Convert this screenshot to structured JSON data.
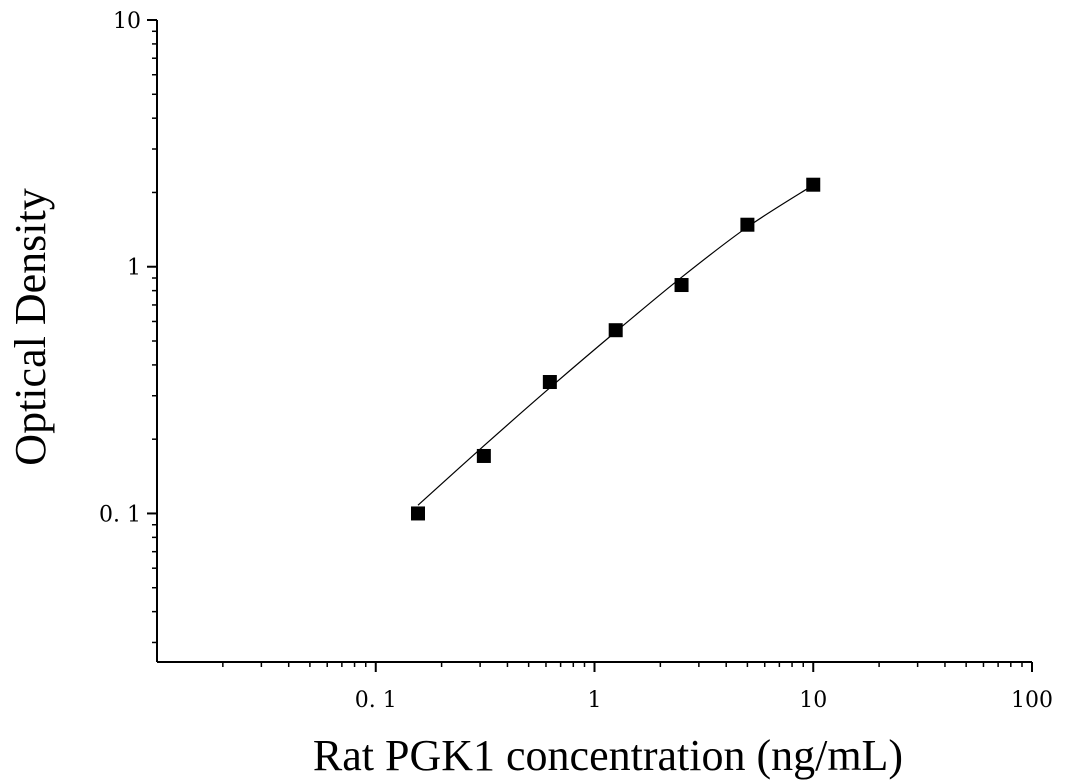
{
  "chart_data": {
    "type": "scatter",
    "title": "",
    "xlabel": "Rat PGK1 concentration (ng/mL)",
    "ylabel": "Optical Density",
    "x_scale": "log",
    "y_scale": "log",
    "xlim": [
      0.01,
      100
    ],
    "ylim": [
      0.025,
      10
    ],
    "x_ticks": [
      {
        "value": 0.1,
        "label": "0. 1"
      },
      {
        "value": 1,
        "label": "1"
      },
      {
        "value": 10,
        "label": "10"
      },
      {
        "value": 100,
        "label": "100"
      }
    ],
    "y_ticks": [
      {
        "value": 0.1,
        "label": "0. 1"
      },
      {
        "value": 1,
        "label": "1"
      },
      {
        "value": 10,
        "label": "10"
      }
    ],
    "grid": false,
    "legend": "none",
    "series": [
      {
        "marker": "square",
        "color": "#000000",
        "x": [
          0.156,
          0.312,
          0.625,
          1.25,
          2.5,
          5,
          10
        ],
        "y": [
          0.1,
          0.171,
          0.341,
          0.553,
          0.843,
          1.48,
          2.15
        ]
      }
    ],
    "fit_line": {
      "color": "#000000",
      "x": [
        0.156,
        0.312,
        0.625,
        1.25,
        2.5,
        5,
        10
      ],
      "y": [
        0.108,
        0.188,
        0.323,
        0.545,
        0.906,
        1.448,
        2.143
      ]
    }
  }
}
